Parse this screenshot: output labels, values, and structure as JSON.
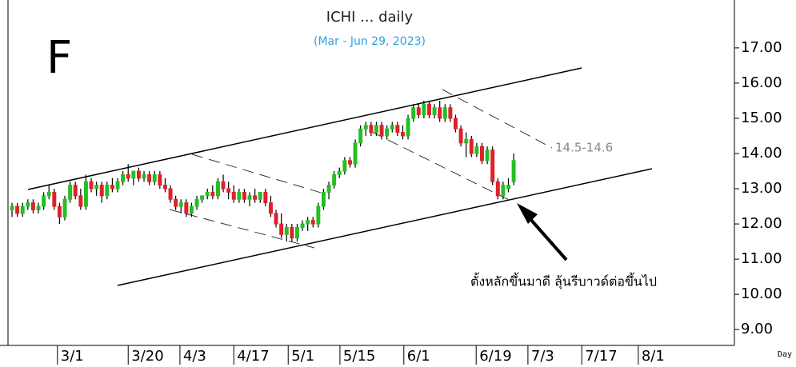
{
  "chart_data": {
    "type": "candlestick",
    "title": "ICHI ... daily",
    "subtitle": "(Mar - Jun 29, 2023)",
    "symbol": "F",
    "annotations": [
      "14.5-14.6",
      "ตั้งหลักขึ้นมาดี ลุ้นรีบาวด์ต่อขึ้นไป"
    ],
    "x_label": "Day",
    "up_color": "#22c022",
    "down_color": "#e0202a",
    "x": [
      0,
      1,
      2,
      3,
      4,
      5,
      6,
      7,
      8,
      9,
      10,
      11,
      12,
      13,
      14,
      15,
      16,
      17,
      18,
      19,
      20,
      21,
      22,
      23,
      24,
      25,
      26,
      27,
      28,
      29,
      30,
      31,
      32,
      33,
      34,
      35,
      36,
      37,
      38,
      39,
      40,
      41,
      42,
      43,
      44,
      45,
      46,
      47,
      48,
      49,
      50,
      51,
      52,
      53,
      54,
      55,
      56,
      57,
      58,
      59,
      60,
      61,
      62,
      63,
      64,
      65,
      66,
      67,
      68,
      69,
      70,
      71,
      72,
      73,
      74,
      75,
      76,
      77,
      78,
      79,
      80,
      81,
      82,
      83,
      84,
      85,
      86,
      87,
      88,
      89,
      90,
      91,
      92,
      93,
      94,
      95
    ],
    "ohlc": [
      [
        12.4,
        12.6,
        12.2,
        12.5
      ],
      [
        12.5,
        12.6,
        12.2,
        12.3
      ],
      [
        12.3,
        12.6,
        12.2,
        12.5
      ],
      [
        12.5,
        12.7,
        12.4,
        12.6
      ],
      [
        12.6,
        12.7,
        12.3,
        12.4
      ],
      [
        12.4,
        12.6,
        12.3,
        12.5
      ],
      [
        12.5,
        12.9,
        12.4,
        12.8
      ],
      [
        12.8,
        13.1,
        12.7,
        12.9
      ],
      [
        12.9,
        13.0,
        12.4,
        12.5
      ],
      [
        12.5,
        12.6,
        12.0,
        12.2
      ],
      [
        12.2,
        12.8,
        12.1,
        12.7
      ],
      [
        12.7,
        13.2,
        12.6,
        13.1
      ],
      [
        13.1,
        13.2,
        12.7,
        12.8
      ],
      [
        12.8,
        13.0,
        12.4,
        12.5
      ],
      [
        12.5,
        13.4,
        12.4,
        13.2
      ],
      [
        13.2,
        13.3,
        12.9,
        13.0
      ],
      [
        13.0,
        13.2,
        12.8,
        13.1
      ],
      [
        13.1,
        13.2,
        12.6,
        12.8
      ],
      [
        12.8,
        13.2,
        12.7,
        13.1
      ],
      [
        13.1,
        13.3,
        12.9,
        13.0
      ],
      [
        13.0,
        13.3,
        12.9,
        13.2
      ],
      [
        13.2,
        13.5,
        13.1,
        13.4
      ],
      [
        13.4,
        13.7,
        13.2,
        13.3
      ],
      [
        13.3,
        13.5,
        13.1,
        13.5
      ],
      [
        13.5,
        13.6,
        13.2,
        13.3
      ],
      [
        13.3,
        13.5,
        13.2,
        13.4
      ],
      [
        13.4,
        13.5,
        13.1,
        13.2
      ],
      [
        13.2,
        13.5,
        13.1,
        13.4
      ],
      [
        13.4,
        13.5,
        13.0,
        13.1
      ],
      [
        13.1,
        13.3,
        12.9,
        13.0
      ],
      [
        13.0,
        13.1,
        12.6,
        12.7
      ],
      [
        12.7,
        12.8,
        12.4,
        12.5
      ],
      [
        12.5,
        12.7,
        12.3,
        12.6
      ],
      [
        12.6,
        12.7,
        12.2,
        12.3
      ],
      [
        12.3,
        12.6,
        12.2,
        12.5
      ],
      [
        12.5,
        12.8,
        12.4,
        12.7
      ],
      [
        12.7,
        12.8,
        12.6,
        12.8
      ],
      [
        12.8,
        13.0,
        12.7,
        12.9
      ],
      [
        12.9,
        13.1,
        12.7,
        12.8
      ],
      [
        12.8,
        13.3,
        12.7,
        13.2
      ],
      [
        13.2,
        13.4,
        12.9,
        13.0
      ],
      [
        13.0,
        13.2,
        12.7,
        12.9
      ],
      [
        12.9,
        13.1,
        12.6,
        12.7
      ],
      [
        12.7,
        13.0,
        12.6,
        12.9
      ],
      [
        12.9,
        13.0,
        12.6,
        12.7
      ],
      [
        12.7,
        12.9,
        12.5,
        12.8
      ],
      [
        12.8,
        13.0,
        12.6,
        12.7
      ],
      [
        12.7,
        12.9,
        12.6,
        12.9
      ],
      [
        12.9,
        13.0,
        12.5,
        12.6
      ],
      [
        12.6,
        12.8,
        12.2,
        12.3
      ],
      [
        12.3,
        12.4,
        11.9,
        12.0
      ],
      [
        12.0,
        12.3,
        11.6,
        11.7
      ],
      [
        11.7,
        12.0,
        11.5,
        11.9
      ],
      [
        11.9,
        12.0,
        11.5,
        11.6
      ],
      [
        11.6,
        12.0,
        11.5,
        11.9
      ],
      [
        11.9,
        12.1,
        11.8,
        12.0
      ],
      [
        12.0,
        12.2,
        11.8,
        12.1
      ],
      [
        12.1,
        12.2,
        11.9,
        12.0
      ],
      [
        12.0,
        12.6,
        11.9,
        12.5
      ],
      [
        12.5,
        13.0,
        12.4,
        12.9
      ],
      [
        12.9,
        13.2,
        12.7,
        13.1
      ],
      [
        13.1,
        13.5,
        13.0,
        13.4
      ],
      [
        13.4,
        13.6,
        13.3,
        13.5
      ],
      [
        13.5,
        13.9,
        13.4,
        13.8
      ],
      [
        13.8,
        13.9,
        13.6,
        13.7
      ],
      [
        13.7,
        14.4,
        13.6,
        14.3
      ],
      [
        14.3,
        14.8,
        14.2,
        14.7
      ],
      [
        14.7,
        14.9,
        14.5,
        14.8
      ],
      [
        14.8,
        14.9,
        14.5,
        14.6
      ],
      [
        14.6,
        14.9,
        14.5,
        14.8
      ],
      [
        14.8,
        14.9,
        14.4,
        14.5
      ],
      [
        14.5,
        14.8,
        14.4,
        14.7
      ],
      [
        14.7,
        14.9,
        14.6,
        14.8
      ],
      [
        14.8,
        14.9,
        14.5,
        14.6
      ],
      [
        14.6,
        14.8,
        14.4,
        14.5
      ],
      [
        14.5,
        15.1,
        14.4,
        15.0
      ],
      [
        15.0,
        15.4,
        14.9,
        15.3
      ],
      [
        15.3,
        15.4,
        15.0,
        15.1
      ],
      [
        15.1,
        15.5,
        15.0,
        15.4
      ],
      [
        15.4,
        15.5,
        15.0,
        15.1
      ],
      [
        15.1,
        15.4,
        15.0,
        15.3
      ],
      [
        15.3,
        15.5,
        14.9,
        15.0
      ],
      [
        15.0,
        15.4,
        14.9,
        15.3
      ],
      [
        15.3,
        15.4,
        14.9,
        15.0
      ],
      [
        15.0,
        15.1,
        14.6,
        14.7
      ],
      [
        14.7,
        14.8,
        14.2,
        14.3
      ],
      [
        14.3,
        14.6,
        13.9,
        14.4
      ],
      [
        14.4,
        14.5,
        13.9,
        14.0
      ],
      [
        14.0,
        14.3,
        13.9,
        14.2
      ],
      [
        14.2,
        14.3,
        13.7,
        13.8
      ],
      [
        13.8,
        14.2,
        13.7,
        14.1
      ],
      [
        14.1,
        14.2,
        13.1,
        13.2
      ],
      [
        13.2,
        13.3,
        12.7,
        12.8
      ],
      [
        12.8,
        13.2,
        12.7,
        13.1
      ],
      [
        13.0,
        13.3,
        12.9,
        13.1
      ],
      [
        13.2,
        14.0,
        13.1,
        13.8
      ]
    ],
    "xlim": [
      -0.76,
      136.8
    ],
    "xticks": [
      {
        "value": 8.6,
        "label": "3/1"
      },
      {
        "value": 22,
        "label": "3/20"
      },
      {
        "value": 31.8,
        "label": "4/3"
      },
      {
        "value": 42,
        "label": "4/17"
      },
      {
        "value": 52.3,
        "label": "5/1"
      },
      {
        "value": 62.1,
        "label": "5/15"
      },
      {
        "value": 74.2,
        "label": "6/1"
      },
      {
        "value": 87.9,
        "label": "6/19"
      },
      {
        "value": 97.7,
        "label": "7/3"
      },
      {
        "value": 107.9,
        "label": "7/17"
      },
      {
        "value": 118.6,
        "label": "8/1"
      }
    ],
    "ylim": [
      8.55,
      18.36
    ],
    "yticks": [
      {
        "value": 9,
        "label": "9.00"
      },
      {
        "value": 10,
        "label": "10.00"
      },
      {
        "value": 11,
        "label": "11.00"
      },
      {
        "value": 12,
        "label": "12.00"
      },
      {
        "value": 13,
        "label": "13.00"
      },
      {
        "value": 14,
        "label": "14.00"
      },
      {
        "value": 15,
        "label": "15.00"
      },
      {
        "value": 16,
        "label": "16.00"
      },
      {
        "value": 17,
        "label": "17.00"
      }
    ]
  }
}
